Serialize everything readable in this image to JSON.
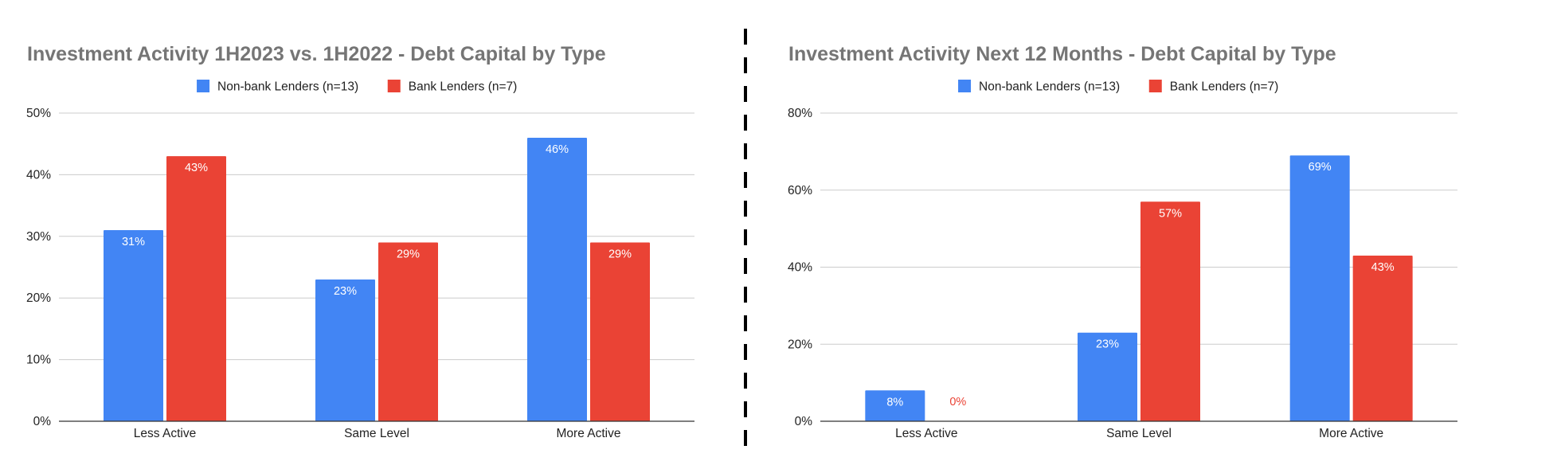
{
  "chart_data": [
    {
      "type": "bar",
      "title": "Investment Activity 1H2023 vs. 1H2022 - Debt Capital by Type",
      "categories": [
        "Less Active",
        "Same Level",
        "More Active"
      ],
      "series": [
        {
          "name": "Non-bank Lenders (n=13)",
          "color": "#4285f4",
          "values": [
            31,
            23,
            46
          ],
          "labels": [
            "31%",
            "23%",
            "46%"
          ]
        },
        {
          "name": "Bank Lenders (n=7)",
          "color": "#ea4335",
          "values": [
            43,
            29,
            29
          ],
          "labels": [
            "43%",
            "29%",
            "29%"
          ]
        }
      ],
      "ylim": [
        0,
        50
      ],
      "yticks": [
        "0%",
        "10%",
        "20%",
        "30%",
        "40%",
        "50%"
      ],
      "grid": true,
      "legend": "top-center"
    },
    {
      "type": "bar",
      "title": "Investment Activity Next 12 Months - Debt Capital by Type",
      "categories": [
        "Less Active",
        "Same Level",
        "More Active"
      ],
      "series": [
        {
          "name": "Non-bank Lenders (n=13)",
          "color": "#4285f4",
          "values": [
            8,
            23,
            69
          ],
          "labels": [
            "8%",
            "23%",
            "69%"
          ]
        },
        {
          "name": "Bank Lenders (n=7)",
          "color": "#ea4335",
          "values": [
            0,
            57,
            43
          ],
          "labels": [
            "0%",
            "57%",
            "43%"
          ]
        }
      ],
      "ylim": [
        0,
        80
      ],
      "yticks": [
        "0%",
        "20%",
        "40%",
        "60%",
        "80%"
      ],
      "grid": true,
      "legend": "top-center"
    }
  ]
}
